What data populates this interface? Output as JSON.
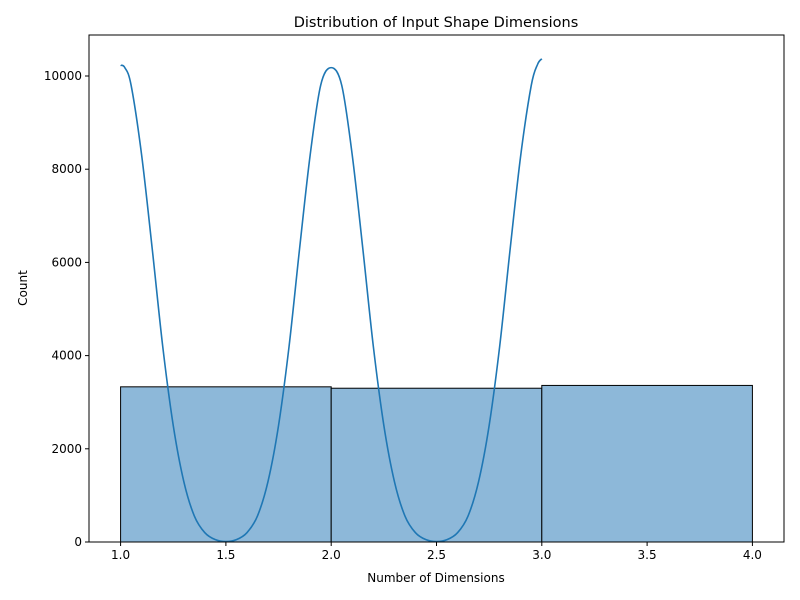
{
  "chart_data": {
    "type": "bar",
    "title": "Distribution of Input Shape Dimensions",
    "xlabel": "Number of Dimensions",
    "ylabel": "Count",
    "xlim": [
      0.85,
      4.15
    ],
    "ylim": [
      0,
      10880
    ],
    "x_ticks": [
      1.0,
      1.5,
      2.0,
      2.5,
      3.0,
      3.5,
      4.0
    ],
    "x_tick_labels": [
      "1.0",
      "1.5",
      "2.0",
      "2.5",
      "3.0",
      "3.5",
      "4.0"
    ],
    "y_ticks": [
      0,
      2000,
      4000,
      6000,
      8000,
      10000
    ],
    "y_tick_labels": [
      "0",
      "2000",
      "4000",
      "6000",
      "8000",
      "10000"
    ],
    "grid": false,
    "bins": [
      {
        "x0": 1.0,
        "x1": 2.0,
        "count": 3330
      },
      {
        "x0": 2.0,
        "x1": 3.0,
        "count": 3300
      },
      {
        "x0": 3.0,
        "x1": 4.0,
        "count": 3360
      }
    ],
    "kde": {
      "points": [
        [
          1.0,
          10230
        ],
        [
          1.02,
          10180
        ],
        [
          1.05,
          9800
        ],
        [
          1.1,
          8300
        ],
        [
          1.15,
          6300
        ],
        [
          1.2,
          4200
        ],
        [
          1.25,
          2500
        ],
        [
          1.3,
          1300
        ],
        [
          1.35,
          560
        ],
        [
          1.4,
          200
        ],
        [
          1.45,
          50
        ],
        [
          1.5,
          10
        ],
        [
          1.55,
          50
        ],
        [
          1.6,
          200
        ],
        [
          1.65,
          560
        ],
        [
          1.7,
          1300
        ],
        [
          1.75,
          2500
        ],
        [
          1.8,
          4200
        ],
        [
          1.85,
          6300
        ],
        [
          1.9,
          8300
        ],
        [
          1.95,
          9800
        ],
        [
          2.0,
          10180
        ],
        [
          2.05,
          9800
        ],
        [
          2.1,
          8300
        ],
        [
          2.15,
          6300
        ],
        [
          2.2,
          4200
        ],
        [
          2.25,
          2500
        ],
        [
          2.3,
          1300
        ],
        [
          2.35,
          560
        ],
        [
          2.4,
          200
        ],
        [
          2.45,
          50
        ],
        [
          2.5,
          10
        ],
        [
          2.55,
          50
        ],
        [
          2.6,
          200
        ],
        [
          2.65,
          560
        ],
        [
          2.7,
          1300
        ],
        [
          2.75,
          2500
        ],
        [
          2.8,
          4200
        ],
        [
          2.85,
          6300
        ],
        [
          2.9,
          8300
        ],
        [
          2.95,
          9800
        ],
        [
          2.98,
          10250
        ],
        [
          3.0,
          10370
        ]
      ]
    },
    "colors": {
      "bar_fill": "#8db8d9",
      "bar_edge": "#000000",
      "kde_line": "#1f77b4"
    }
  }
}
